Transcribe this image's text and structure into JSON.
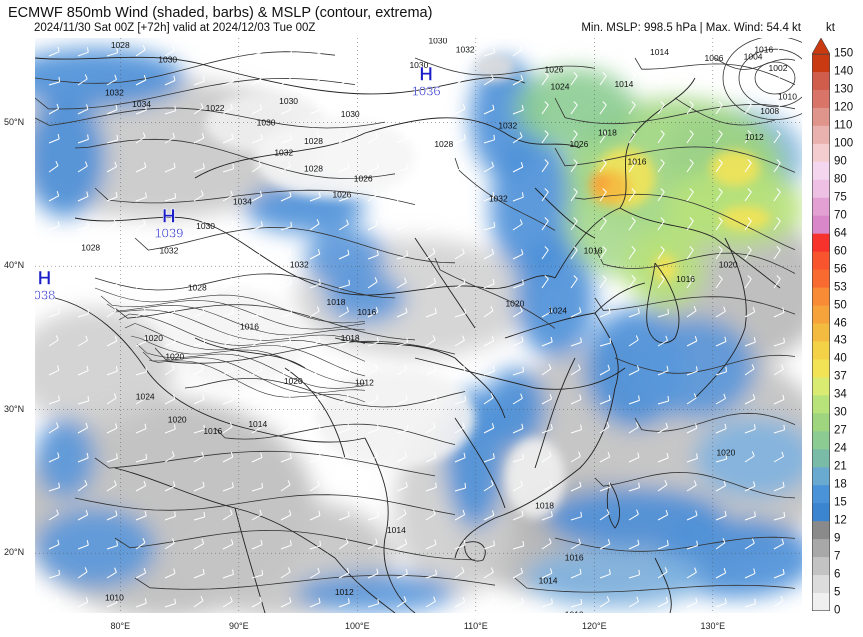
{
  "header": {
    "title": "ECMWF 850mb Wind (shaded, barbs) & MSLP (contour, extrema)",
    "subtitle": "2024/11/30 Sat 00Z [+72h] valid at 2024/12/03 Tue 00Z",
    "stats": "Min. MSLP: 998.5 hPa | Max. Wind: 54.4 kt"
  },
  "colorbar": {
    "unit": "kt",
    "ticks": [
      "150",
      "140",
      "130",
      "120",
      "110",
      "100",
      "90",
      "80",
      "75",
      "70",
      "64",
      "60",
      "56",
      "53",
      "50",
      "46",
      "43",
      "40",
      "37",
      "34",
      "30",
      "27",
      "24",
      "21",
      "18",
      "15",
      "12",
      "9",
      "7",
      "6",
      "5",
      "0"
    ],
    "colors": [
      "#ca3a12",
      "#d05c4c",
      "#d97468",
      "#e0958c",
      "#e9b2af",
      "#f3cdd0",
      "#f4d7ef",
      "#eec0e3",
      "#e3a0d3",
      "#d987c8",
      "#f7322d",
      "#f8552e",
      "#f86a30",
      "#f88c36",
      "#f6a33b",
      "#f4bb41",
      "#f4d247",
      "#f2e356",
      "#d9ec71",
      "#b8e27a",
      "#9fd57e",
      "#8ccc92",
      "#7abba8",
      "#6aaad0",
      "#4b93d9",
      "#3b84cf",
      "#8a8a8a",
      "#a8a8a8",
      "#c3c3c3",
      "#dcdcdc",
      "#f0f0f0",
      "#ffffff"
    ]
  },
  "axes": {
    "lat_labels": [
      "50°N",
      "40°N",
      "30°N",
      "20°N"
    ],
    "lon_labels": [
      "80°E",
      "90°E",
      "100°E",
      "110°E",
      "120°E",
      "130°E"
    ]
  },
  "highs": [
    {
      "letter": "H",
      "value": "1036",
      "lon": 105.8,
      "lat": 52.8
    },
    {
      "letter": "H",
      "value": "1039",
      "lon": 84.1,
      "lat": 42.9
    },
    {
      "letter": "H",
      "value": "038",
      "lon": 73.6,
      "lat": 38.6
    }
  ],
  "isobar_labels": [
    {
      "t": "1028",
      "lon": 80,
      "lat": 55.2
    },
    {
      "t": "1030",
      "lon": 84,
      "lat": 54.2
    },
    {
      "t": "1032",
      "lon": 79.5,
      "lat": 51.9
    },
    {
      "t": "1034",
      "lon": 81.8,
      "lat": 51.1
    },
    {
      "t": "1022",
      "lon": 88,
      "lat": 50.8
    },
    {
      "t": "1030",
      "lon": 94.2,
      "lat": 51.3
    },
    {
      "t": "1030",
      "lon": 92.3,
      "lat": 49.8
    },
    {
      "t": "1030",
      "lon": 99.4,
      "lat": 50.4
    },
    {
      "t": "1028",
      "lon": 96.3,
      "lat": 48.5
    },
    {
      "t": "1032",
      "lon": 93.8,
      "lat": 47.7
    },
    {
      "t": "1030",
      "lon": 106.8,
      "lat": 55.5
    },
    {
      "t": "1032",
      "lon": 109.1,
      "lat": 54.9
    },
    {
      "t": "1030",
      "lon": 105.2,
      "lat": 53.8
    },
    {
      "t": "1028",
      "lon": 96.3,
      "lat": 46.6
    },
    {
      "t": "1026",
      "lon": 100.5,
      "lat": 45.9
    },
    {
      "t": "1026",
      "lon": 98.7,
      "lat": 44.8
    },
    {
      "t": "1028",
      "lon": 107.3,
      "lat": 48.3
    },
    {
      "t": "1032",
      "lon": 112.7,
      "lat": 49.6
    },
    {
      "t": "1032",
      "lon": 111.9,
      "lat": 44.5
    },
    {
      "t": "1034",
      "lon": 90.3,
      "lat": 44.3
    },
    {
      "t": "1030",
      "lon": 87.2,
      "lat": 42.6
    },
    {
      "t": "1032",
      "lon": 84.1,
      "lat": 40.9
    },
    {
      "t": "1028",
      "lon": 77.5,
      "lat": 41.1
    },
    {
      "t": "1028",
      "lon": 86.5,
      "lat": 38.3
    },
    {
      "t": "1032",
      "lon": 95.1,
      "lat": 39.9
    },
    {
      "t": "1018",
      "lon": 98.2,
      "lat": 37.3
    },
    {
      "t": "1016",
      "lon": 100.8,
      "lat": 36.6
    },
    {
      "t": "1016",
      "lon": 90.9,
      "lat": 35.6
    },
    {
      "t": "1018",
      "lon": 99.4,
      "lat": 34.8
    },
    {
      "t": "1020",
      "lon": 82.8,
      "lat": 34.8
    },
    {
      "t": "1020",
      "lon": 84.6,
      "lat": 33.5
    },
    {
      "t": "1020",
      "lon": 94.6,
      "lat": 31.8
    },
    {
      "t": "1012",
      "lon": 100.6,
      "lat": 31.7
    },
    {
      "t": "1024",
      "lon": 82.1,
      "lat": 30.7
    },
    {
      "t": "1020",
      "lon": 84.8,
      "lat": 29.1
    },
    {
      "t": "1014",
      "lon": 91.6,
      "lat": 28.8
    },
    {
      "t": "1016",
      "lon": 87.8,
      "lat": 28.3
    },
    {
      "t": "1026",
      "lon": 116.6,
      "lat": 53.5
    },
    {
      "t": "1024",
      "lon": 117.1,
      "lat": 52.3
    },
    {
      "t": "1014",
      "lon": 122.5,
      "lat": 52.5
    },
    {
      "t": "1018",
      "lon": 121.1,
      "lat": 49.1
    },
    {
      "t": "1026",
      "lon": 118.7,
      "lat": 48.3
    },
    {
      "t": "1016",
      "lon": 123.6,
      "lat": 47.1
    },
    {
      "t": "1014",
      "lon": 125.5,
      "lat": 54.7
    },
    {
      "t": "1006",
      "lon": 130.1,
      "lat": 54.3
    },
    {
      "t": "1004",
      "lon": 133.4,
      "lat": 54.4
    },
    {
      "t": "1002",
      "lon": 135.5,
      "lat": 53.6
    },
    {
      "t": "1016",
      "lon": 134.3,
      "lat": 54.9
    },
    {
      "t": "1010",
      "lon": 136.3,
      "lat": 51.6
    },
    {
      "t": "1008",
      "lon": 134.8,
      "lat": 50.6
    },
    {
      "t": "1012",
      "lon": 133.5,
      "lat": 48.8
    },
    {
      "t": "1016",
      "lon": 119.9,
      "lat": 40.9
    },
    {
      "t": "1020",
      "lon": 131.3,
      "lat": 39.9
    },
    {
      "t": "1020",
      "lon": 113.3,
      "lat": 37.2
    },
    {
      "t": "1024",
      "lon": 116.9,
      "lat": 36.7
    },
    {
      "t": "1016",
      "lon": 127.7,
      "lat": 38.9
    },
    {
      "t": "1020",
      "lon": 131.1,
      "lat": 26.8
    },
    {
      "t": "1018",
      "lon": 115.8,
      "lat": 23.1
    },
    {
      "t": "1016",
      "lon": 118.3,
      "lat": 19.5
    },
    {
      "t": "1014",
      "lon": 116.1,
      "lat": 17.9
    },
    {
      "t": "1012",
      "lon": 98.9,
      "lat": 17.1
    },
    {
      "t": "1014",
      "lon": 103.3,
      "lat": 21.4
    },
    {
      "t": "1012",
      "lon": 107.4,
      "lat": 15.2
    },
    {
      "t": "1010",
      "lon": 79.5,
      "lat": 16.7
    },
    {
      "t": "1008",
      "lon": 74.5,
      "lat": 15.3
    },
    {
      "t": "1010",
      "lon": 118.3,
      "lat": 15.5
    },
    {
      "t": "1012",
      "lon": 120.4,
      "lat": 14.9
    }
  ]
}
